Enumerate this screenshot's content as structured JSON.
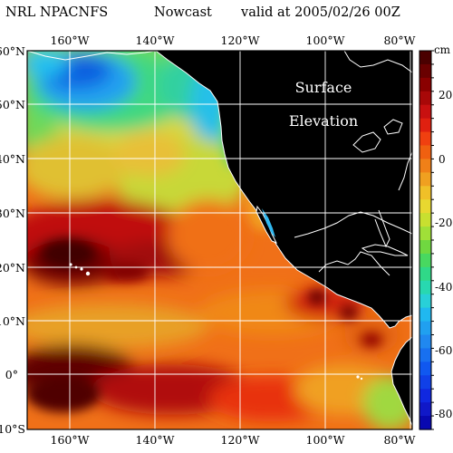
{
  "header": {
    "model": "NRL NPACNFS",
    "product": "Nowcast",
    "valid": "valid at 2005/02/26 00Z"
  },
  "map": {
    "lon_labels": [
      "160°W",
      "140°W",
      "120°W",
      "100°W",
      "80°W"
    ],
    "lat_labels": [
      "60°N",
      "50°N",
      "40°N",
      "30°N",
      "20°N",
      "10°N",
      "0°",
      "10°S"
    ],
    "annotation_line1": "Surface",
    "annotation_line2": "Elevation",
    "land_color": "#000000",
    "coast_color": "#ffffff",
    "grid_color": "#ffffff"
  },
  "colorbar": {
    "unit": "cm",
    "tick_labels": [
      "20",
      "0",
      "-20",
      "-40",
      "-60",
      "-80"
    ]
  }
}
